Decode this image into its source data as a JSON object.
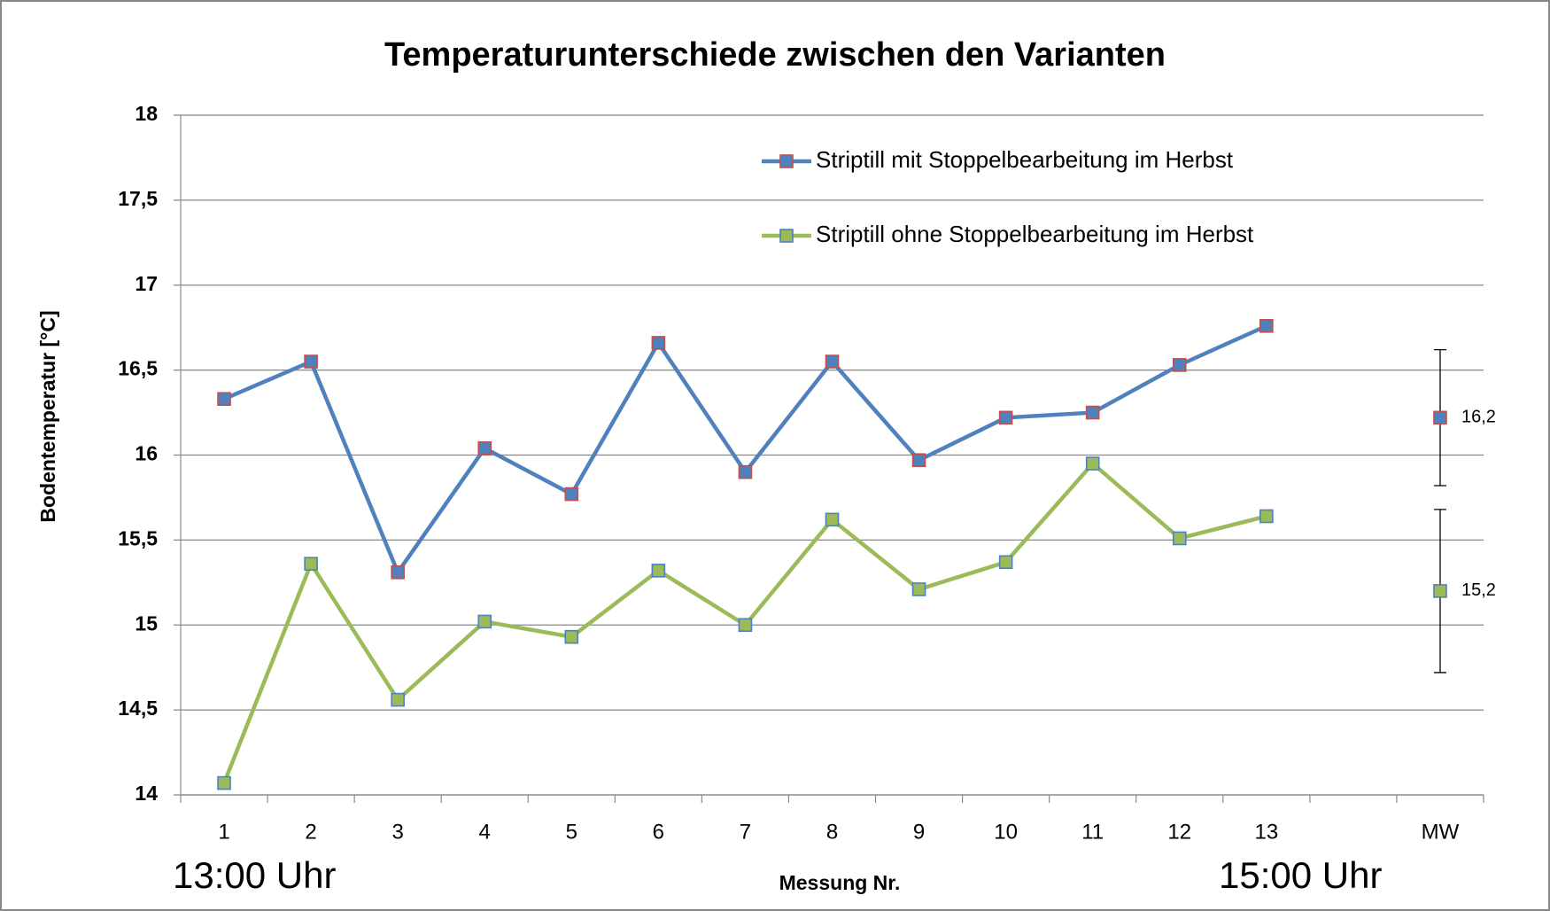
{
  "chart_data": {
    "type": "line",
    "title": "Temperaturunterschiede zwischen den Varianten",
    "y_label": "Bodentemperatur [°C]",
    "x_label": "Messung Nr.",
    "annotations": [
      "13:00 Uhr",
      "15:00 Uhr"
    ],
    "categories": [
      "1",
      "2",
      "3",
      "4",
      "5",
      "6",
      "7",
      "8",
      "9",
      "10",
      "11",
      "12",
      "13",
      null,
      "MW"
    ],
    "series": [
      {
        "name": "Striptill mit Stoppelbearbeitung im Herbst",
        "color": "#4f81bd",
        "marker_edge": "#c0504d",
        "values": [
          16.33,
          16.55,
          15.31,
          16.04,
          15.77,
          16.66,
          15.9,
          16.55,
          15.97,
          16.22,
          16.25,
          16.53,
          16.76,
          null,
          16.22
        ],
        "errors": [
          null,
          null,
          null,
          null,
          null,
          null,
          null,
          null,
          null,
          null,
          null,
          null,
          null,
          null,
          0.4
        ],
        "value_labels": [
          null,
          null,
          null,
          null,
          null,
          null,
          null,
          null,
          null,
          null,
          null,
          null,
          null,
          null,
          "16,2"
        ]
      },
      {
        "name": "Striptill ohne Stoppelbearbeitung im Herbst",
        "color": "#9bbb59",
        "marker_edge": "#4f81bd",
        "values": [
          14.07,
          15.36,
          14.56,
          15.02,
          14.93,
          15.32,
          15.0,
          15.62,
          15.21,
          15.37,
          15.95,
          15.51,
          15.64,
          null,
          15.2
        ],
        "errors": [
          null,
          null,
          null,
          null,
          null,
          null,
          null,
          null,
          null,
          null,
          null,
          null,
          null,
          null,
          0.48
        ],
        "value_labels": [
          null,
          null,
          null,
          null,
          null,
          null,
          null,
          null,
          null,
          null,
          null,
          null,
          null,
          null,
          "15,2"
        ]
      }
    ],
    "ylim": [
      14,
      18
    ],
    "yticks": [
      14,
      {
        "value": 14.5,
        "label": "14,5"
      },
      15,
      {
        "value": 15.5,
        "label": "15,5"
      },
      16,
      {
        "value": 16.5,
        "label": "16,5"
      },
      17,
      {
        "value": 17.5,
        "label": "17,5"
      },
      18
    ],
    "grid": true,
    "legend": "top-right"
  }
}
